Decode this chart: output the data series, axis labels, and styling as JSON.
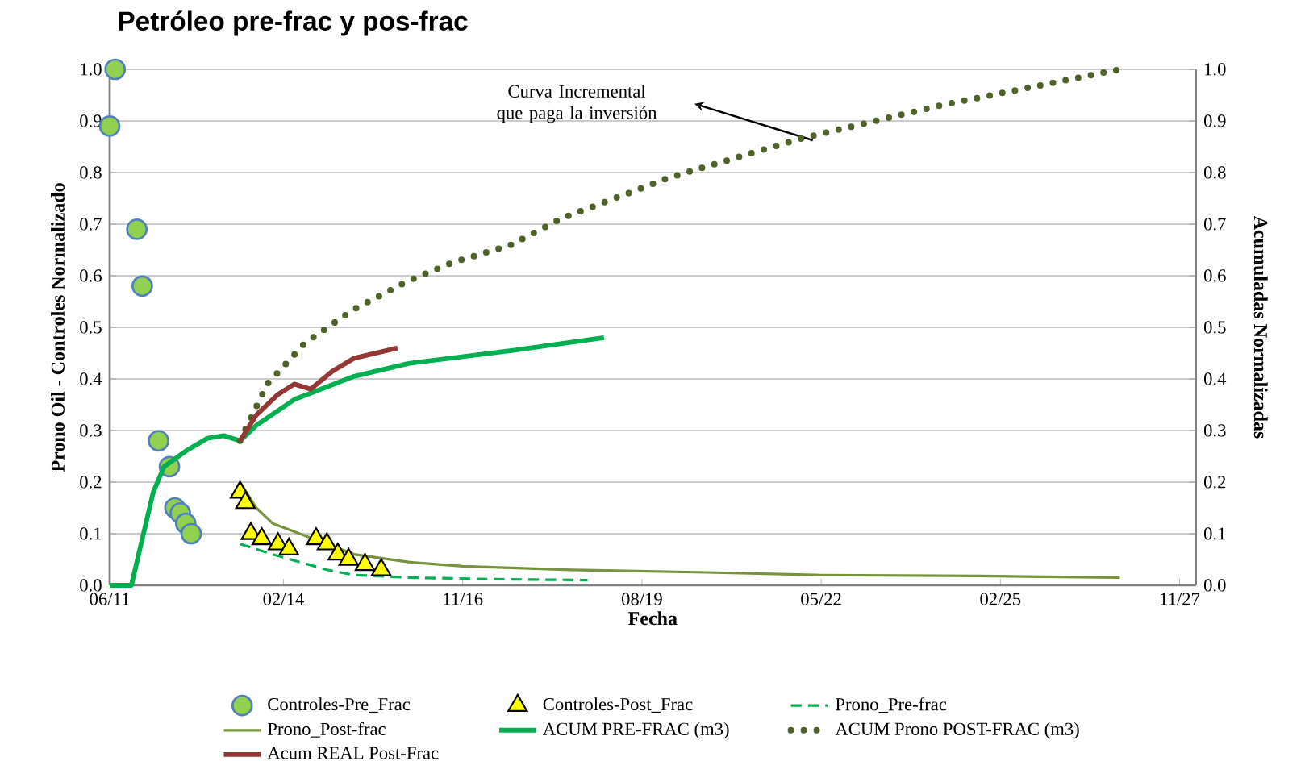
{
  "chart_data": {
    "type": "line",
    "title": "Petróleo pre-frac y pos-frac",
    "xlabel": "Fecha",
    "ylabel": "Prono Oil - Controles Normalizado",
    "y2label": "Acumuladas Normalizadas",
    "xlim": [
      "2011-06",
      "2028-02"
    ],
    "xticks": [
      {
        "value": "2011-06",
        "label": "06/11"
      },
      {
        "value": "2014-02",
        "label": "02/14"
      },
      {
        "value": "2016-11",
        "label": "11/16"
      },
      {
        "value": "2019-08",
        "label": "08/19"
      },
      {
        "value": "2022-05",
        "label": "05/22"
      },
      {
        "value": "2025-02",
        "label": "02/25"
      },
      {
        "value": "2027-11",
        "label": "11/27"
      }
    ],
    "ylim": [
      0,
      1
    ],
    "yticks": [
      {
        "value": 0,
        "label": "0.0"
      },
      {
        "value": 0.1,
        "label": "0.1"
      },
      {
        "value": 0.2,
        "label": "0.2"
      },
      {
        "value": 0.3,
        "label": "0.3"
      },
      {
        "value": 0.4,
        "label": "0.4"
      },
      {
        "value": 0.5,
        "label": "0.5"
      },
      {
        "value": 0.6,
        "label": "0.6"
      },
      {
        "value": 0.7,
        "label": "0.7"
      },
      {
        "value": 0.8,
        "label": "0.8"
      },
      {
        "value": 0.9,
        "label": "0.9"
      },
      {
        "value": 1,
        "label": "1.0"
      }
    ],
    "y2lim": [
      0,
      1
    ],
    "y2ticks": [
      {
        "value": 0,
        "label": "0.0"
      },
      {
        "value": 0.1,
        "label": "0.1"
      },
      {
        "value": 0.2,
        "label": "0.2"
      },
      {
        "value": 0.3,
        "label": "0.3"
      },
      {
        "value": 0.4,
        "label": "0.4"
      },
      {
        "value": 0.5,
        "label": "0.5"
      },
      {
        "value": 0.6,
        "label": "0.6"
      },
      {
        "value": 0.7,
        "label": "0.7"
      },
      {
        "value": 0.8,
        "label": "0.8"
      },
      {
        "value": 0.9,
        "label": "0.9"
      },
      {
        "value": 1,
        "label": "1.0"
      }
    ],
    "grid": "y",
    "legend": "bottom",
    "annotations": [
      "Curva Incremental que paga la inversión"
    ],
    "series": [
      {
        "name": "Controles-Pre_Frac",
        "type": "scatter",
        "marker": "circle",
        "color": "#92d050",
        "x": [
          "2011-06",
          "2011-07",
          "2011-11",
          "2011-12",
          "2012-03",
          "2012-05",
          "2012-06",
          "2012-07",
          "2012-08",
          "2012-09"
        ],
        "values": [
          0.89,
          1.0,
          0.69,
          0.58,
          0.28,
          0.23,
          0.15,
          0.14,
          0.12,
          0.1
        ]
      },
      {
        "name": "Controles-Post_Frac",
        "type": "scatter",
        "marker": "triangle",
        "color": "#ffff00",
        "x": [
          "2013-06",
          "2013-07",
          "2013-08",
          "2013-10",
          "2014-01",
          "2014-03",
          "2014-08",
          "2014-10",
          "2014-12",
          "2015-02",
          "2015-05",
          "2015-08"
        ],
        "values": [
          0.18,
          0.16,
          0.1,
          0.09,
          0.08,
          0.07,
          0.09,
          0.08,
          0.06,
          0.05,
          0.04,
          0.03
        ]
      },
      {
        "name": "Prono_Pre-frac",
        "line_style": "dashed",
        "color": "#00b050",
        "x": [
          "2013-06",
          "2013-12",
          "2014-05",
          "2014-10",
          "2015-03",
          "2016-01",
          "2017-04",
          "2018-10"
        ],
        "values": [
          0.08,
          0.06,
          0.045,
          0.03,
          0.02,
          0.015,
          0.012,
          0.01
        ]
      },
      {
        "name": "Prono_Post-frac",
        "line_style": "solid",
        "color": "#77933c",
        "x": [
          "2013-06",
          "2013-09",
          "2013-12",
          "2014-05",
          "2014-10",
          "2015-03",
          "2016-01",
          "2016-11",
          "2018-07",
          "2020-08",
          "2022-04",
          "2024-10",
          "2026-12"
        ],
        "values": [
          0.2,
          0.15,
          0.12,
          0.1,
          0.08,
          0.06,
          0.045,
          0.037,
          0.03,
          0.025,
          0.02,
          0.018,
          0.015
        ]
      },
      {
        "name": "ACUM PRE-FRAC (m3)",
        "axis": "y2",
        "line_style": "solid",
        "color": "#00b050",
        "x": [
          "2011-06",
          "2011-10",
          "2011-12",
          "2012-02",
          "2012-04",
          "2012-08",
          "2012-12",
          "2013-03",
          "2013-06",
          "2013-09",
          "2014-04",
          "2015-03",
          "2016-01",
          "2017-08",
          "2019-01"
        ],
        "values": [
          0,
          0,
          0.09,
          0.18,
          0.23,
          0.26,
          0.285,
          0.29,
          0.28,
          0.31,
          0.36,
          0.405,
          0.43,
          0.455,
          0.48
        ]
      },
      {
        "name": "ACUM Prono POST-FRAC (m3)",
        "axis": "y2",
        "line_style": "dotted",
        "color": "#4f6228",
        "x": [
          "2013-06",
          "2013-11",
          "2014-06",
          "2015-03",
          "2016-01",
          "2016-09",
          "2017-08",
          "2018-05",
          "2020-01",
          "2022-01",
          "2024-03",
          "2026-12"
        ],
        "values": [
          0.28,
          0.39,
          0.47,
          0.535,
          0.59,
          0.625,
          0.66,
          0.71,
          0.79,
          0.865,
          0.93,
          1.0
        ]
      },
      {
        "name": "Acum REAL Post-Frac",
        "axis": "y2",
        "line_style": "solid",
        "color": "#953735",
        "x": [
          "2013-06",
          "2013-09",
          "2014-01",
          "2014-04",
          "2014-07",
          "2014-11",
          "2015-03",
          "2015-07",
          "2015-11"
        ],
        "values": [
          0.28,
          0.33,
          0.37,
          0.39,
          0.38,
          0.415,
          0.44,
          0.45,
          0.46
        ]
      }
    ]
  }
}
